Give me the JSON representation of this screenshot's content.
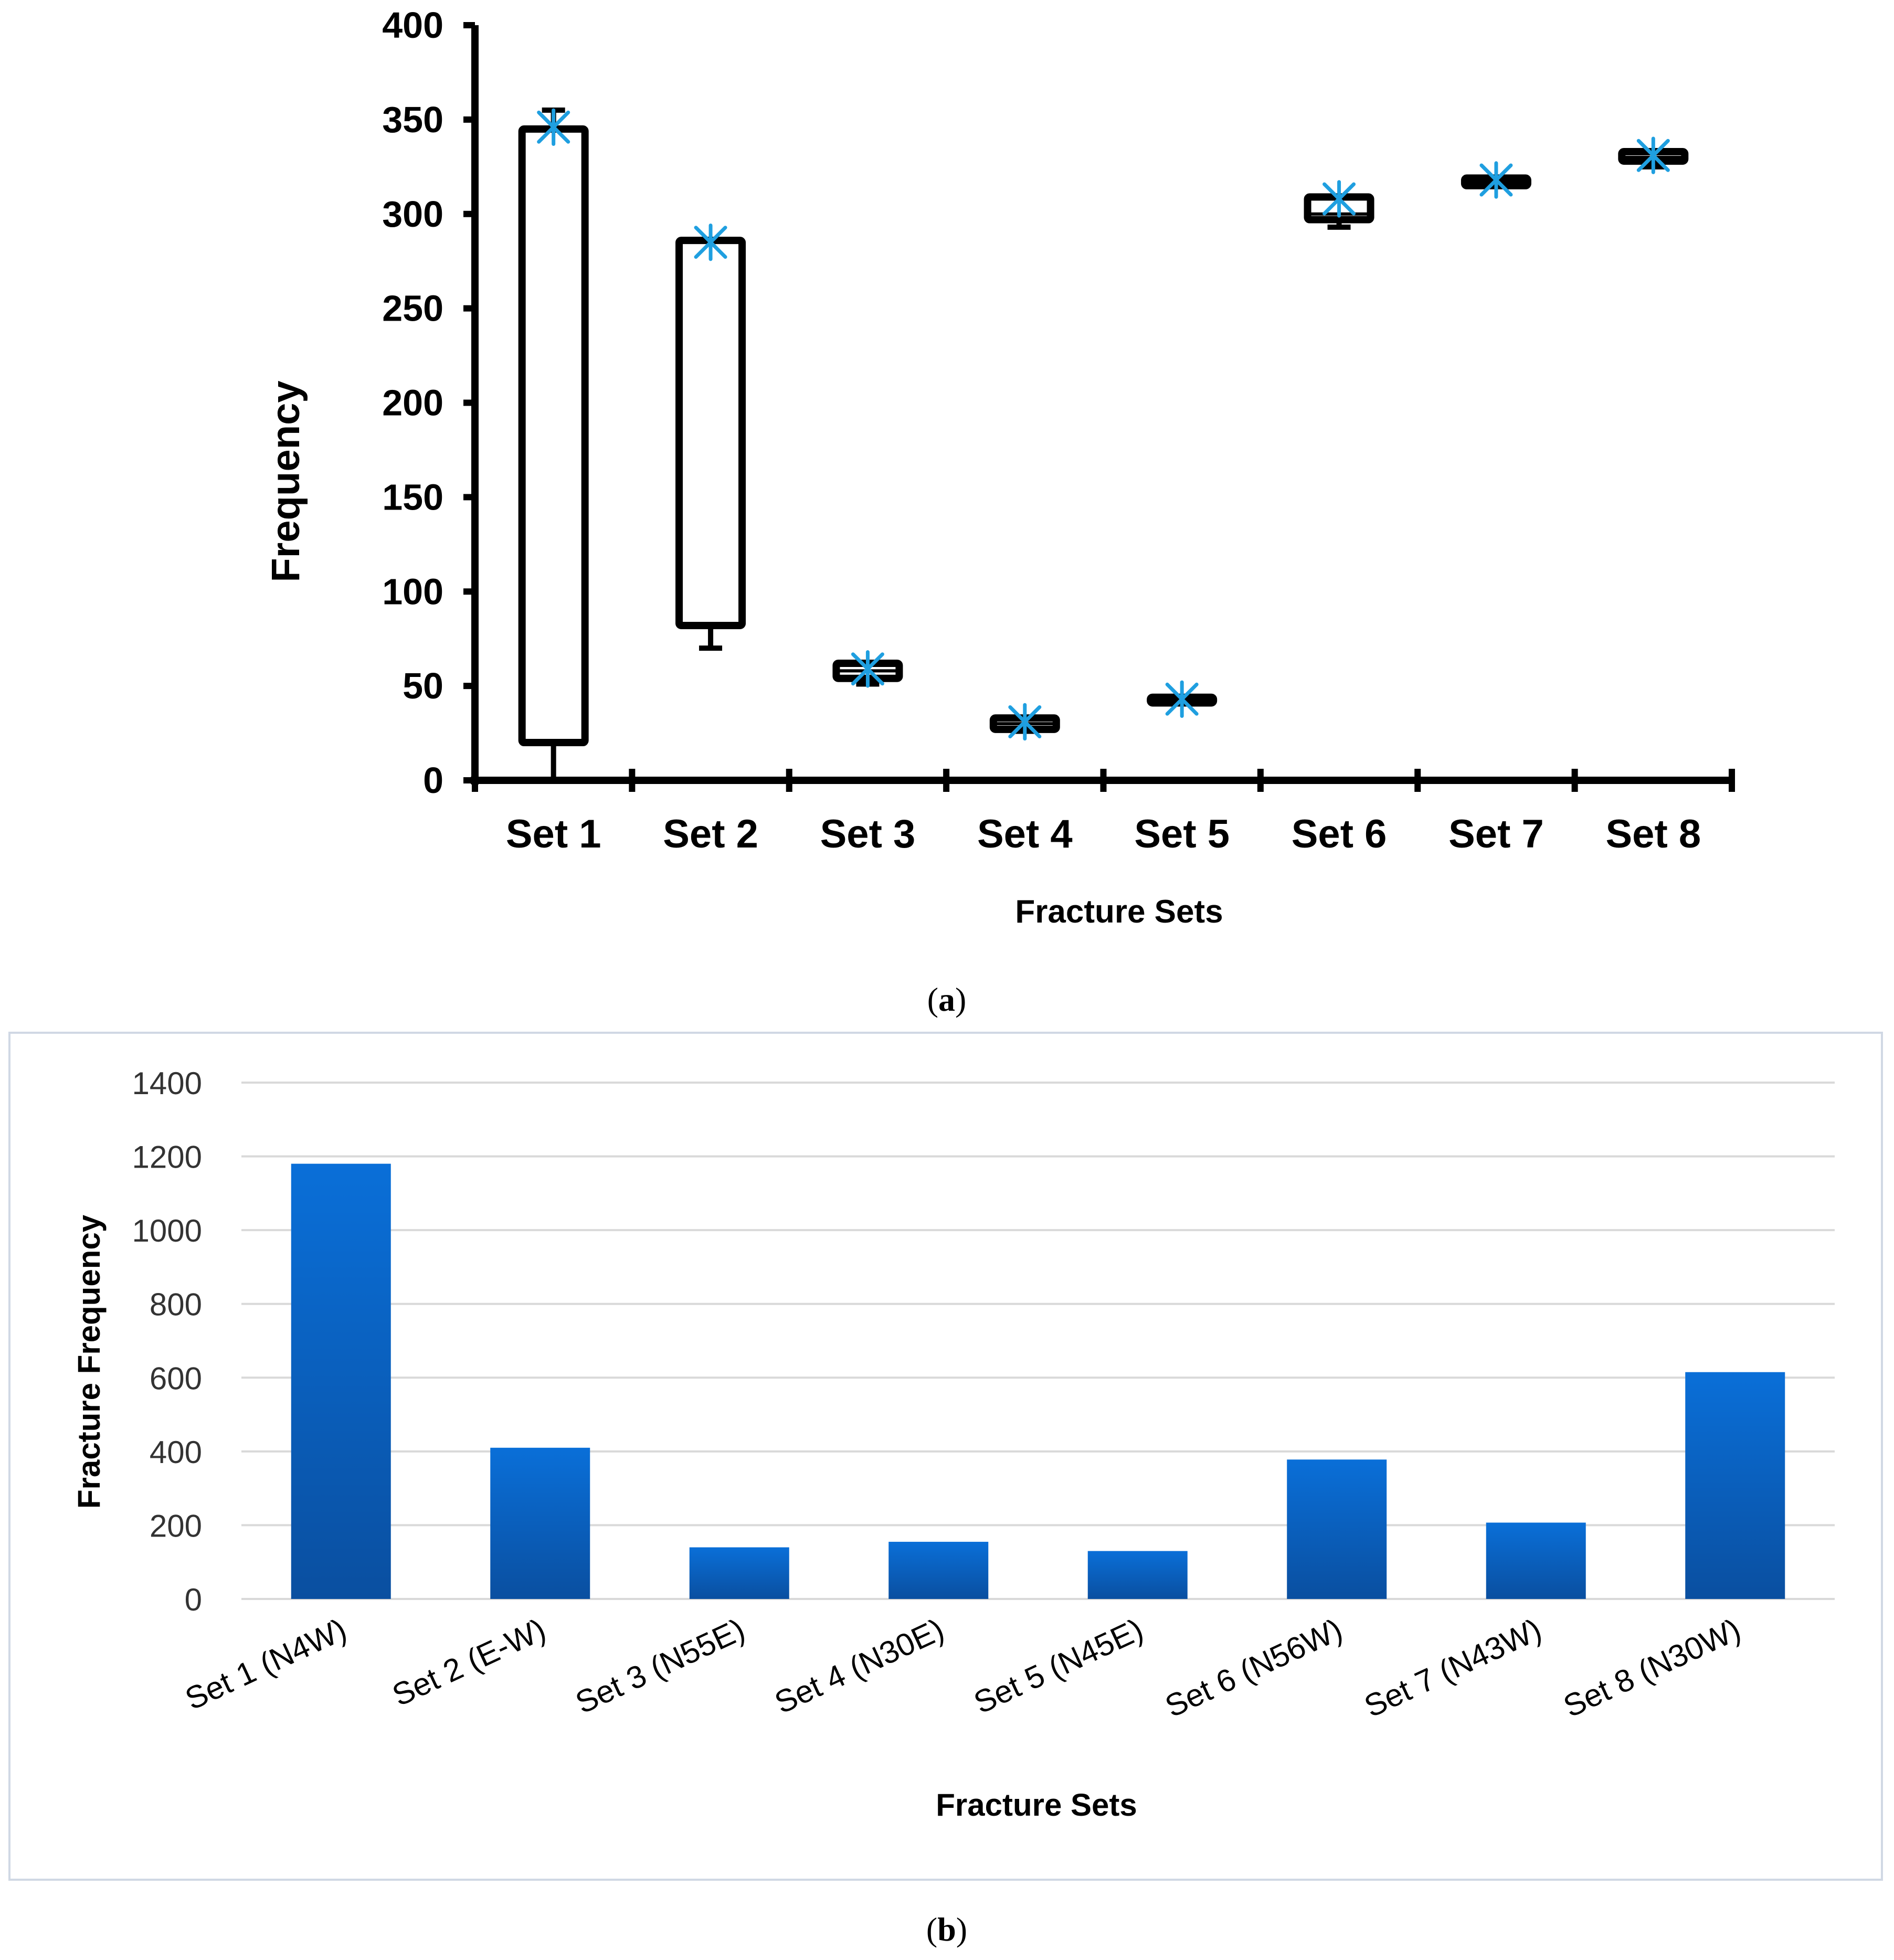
{
  "colors": {
    "axis": "#000000",
    "box_fill": "#ffffff",
    "mean_marker": "#1f9fe0",
    "bar_top": "#0a6fd8",
    "bar_bottom": "#0a4fa0",
    "grid": "#d9d9d9",
    "panel_border": "#d0d8e4",
    "tick_text_b": "#333333"
  },
  "panel_a": {
    "caption_open": "(",
    "caption_letter": "a",
    "caption_close": ")"
  },
  "panel_b": {
    "caption_open": "(",
    "caption_letter": "b",
    "caption_close": ")"
  },
  "chart_data": [
    {
      "type": "box",
      "title": "",
      "xlabel": "Fracture Sets",
      "ylabel": "Frequency",
      "ylim": [
        0,
        400
      ],
      "yticks": [
        0,
        50,
        100,
        150,
        200,
        250,
        300,
        350,
        400
      ],
      "grid": false,
      "mean_marker_icon": "asterisk-cross",
      "categories": [
        "Set 1",
        "Set 2",
        "Set 3",
        "Set 4",
        "Set 5",
        "Set 6",
        "Set 7",
        "Set 8"
      ],
      "boxes": [
        {
          "min": 0,
          "q1": 20,
          "median": 20,
          "q3": 345,
          "max": 355,
          "mean": 346
        },
        {
          "min": 70,
          "q1": 82,
          "median": 82,
          "q3": 286,
          "max": 286,
          "mean": 285
        },
        {
          "min": 51,
          "q1": 54,
          "median": 58,
          "q3": 62,
          "max": 62,
          "mean": 59
        },
        {
          "min": 26,
          "q1": 27,
          "median": 30,
          "q3": 33,
          "max": 33,
          "mean": 31
        },
        {
          "min": 41,
          "q1": 41,
          "median": 42,
          "q3": 44,
          "max": 44,
          "mean": 43
        },
        {
          "min": 293,
          "q1": 297,
          "median": 300,
          "q3": 309,
          "max": 309,
          "mean": 308
        },
        {
          "min": 315,
          "q1": 315,
          "median": 317,
          "q3": 319,
          "max": 319,
          "mean": 318
        },
        {
          "min": 325,
          "q1": 328,
          "median": 330,
          "q3": 333,
          "max": 333,
          "mean": 331
        }
      ]
    },
    {
      "type": "bar",
      "title": "",
      "xlabel": "Fracture Sets",
      "ylabel": "Fracture Frequency",
      "ylim": [
        0,
        1400
      ],
      "yticks": [
        0,
        200,
        400,
        600,
        800,
        1000,
        1200,
        1400
      ],
      "grid": true,
      "categories": [
        "Set 1 (N4W)",
        "Set 2 (E-W)",
        "Set 3 (N55E)",
        "Set 4 (N30E)",
        "Set 5 (N45E)",
        "Set 6 (N56W)",
        "Set 7 (N43W)",
        "Set 8 (N30W)"
      ],
      "values": [
        1180,
        410,
        140,
        155,
        130,
        378,
        207,
        615
      ]
    }
  ]
}
